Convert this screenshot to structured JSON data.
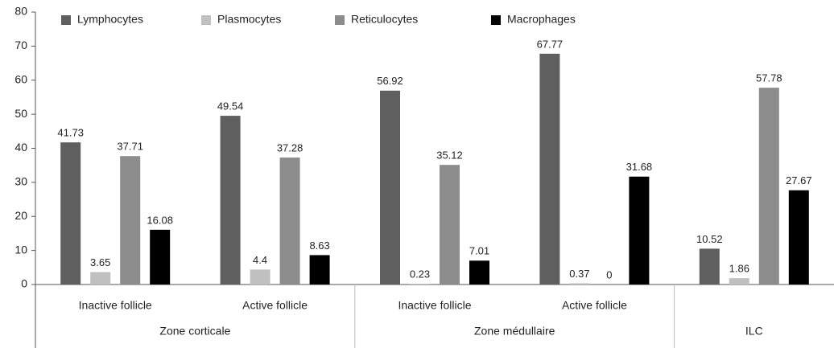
{
  "chart_data": {
    "type": "bar",
    "categories": [
      "Inactive follicle",
      "Active follicle",
      "Inactive follicle",
      "Active follicle",
      null
    ],
    "groups": [
      {
        "label": "Zone corticale",
        "categories": 2
      },
      {
        "label": "Zone médullaire",
        "categories": 2
      },
      {
        "label": "ILC",
        "categories": 1
      }
    ],
    "series": [
      {
        "name": "Lymphocytes",
        "color": "#5f5f5f",
        "values": [
          41.73,
          49.54,
          56.92,
          67.77,
          10.52
        ]
      },
      {
        "name": "Plasmocytes",
        "color": "#c0c0c0",
        "values": [
          3.65,
          4.4,
          0.23,
          0.37,
          1.86
        ]
      },
      {
        "name": "Reticulocytes",
        "color": "#8c8c8c",
        "values": [
          37.71,
          37.28,
          35.12,
          0,
          57.78
        ]
      },
      {
        "name": "Macrophages",
        "color": "#000000",
        "values": [
          16.08,
          8.63,
          7.01,
          31.68,
          27.67
        ]
      }
    ],
    "ylim": [
      0,
      80
    ],
    "yticks": [
      0,
      10,
      20,
      30,
      40,
      50,
      60,
      70,
      80
    ],
    "legend": "top"
  }
}
